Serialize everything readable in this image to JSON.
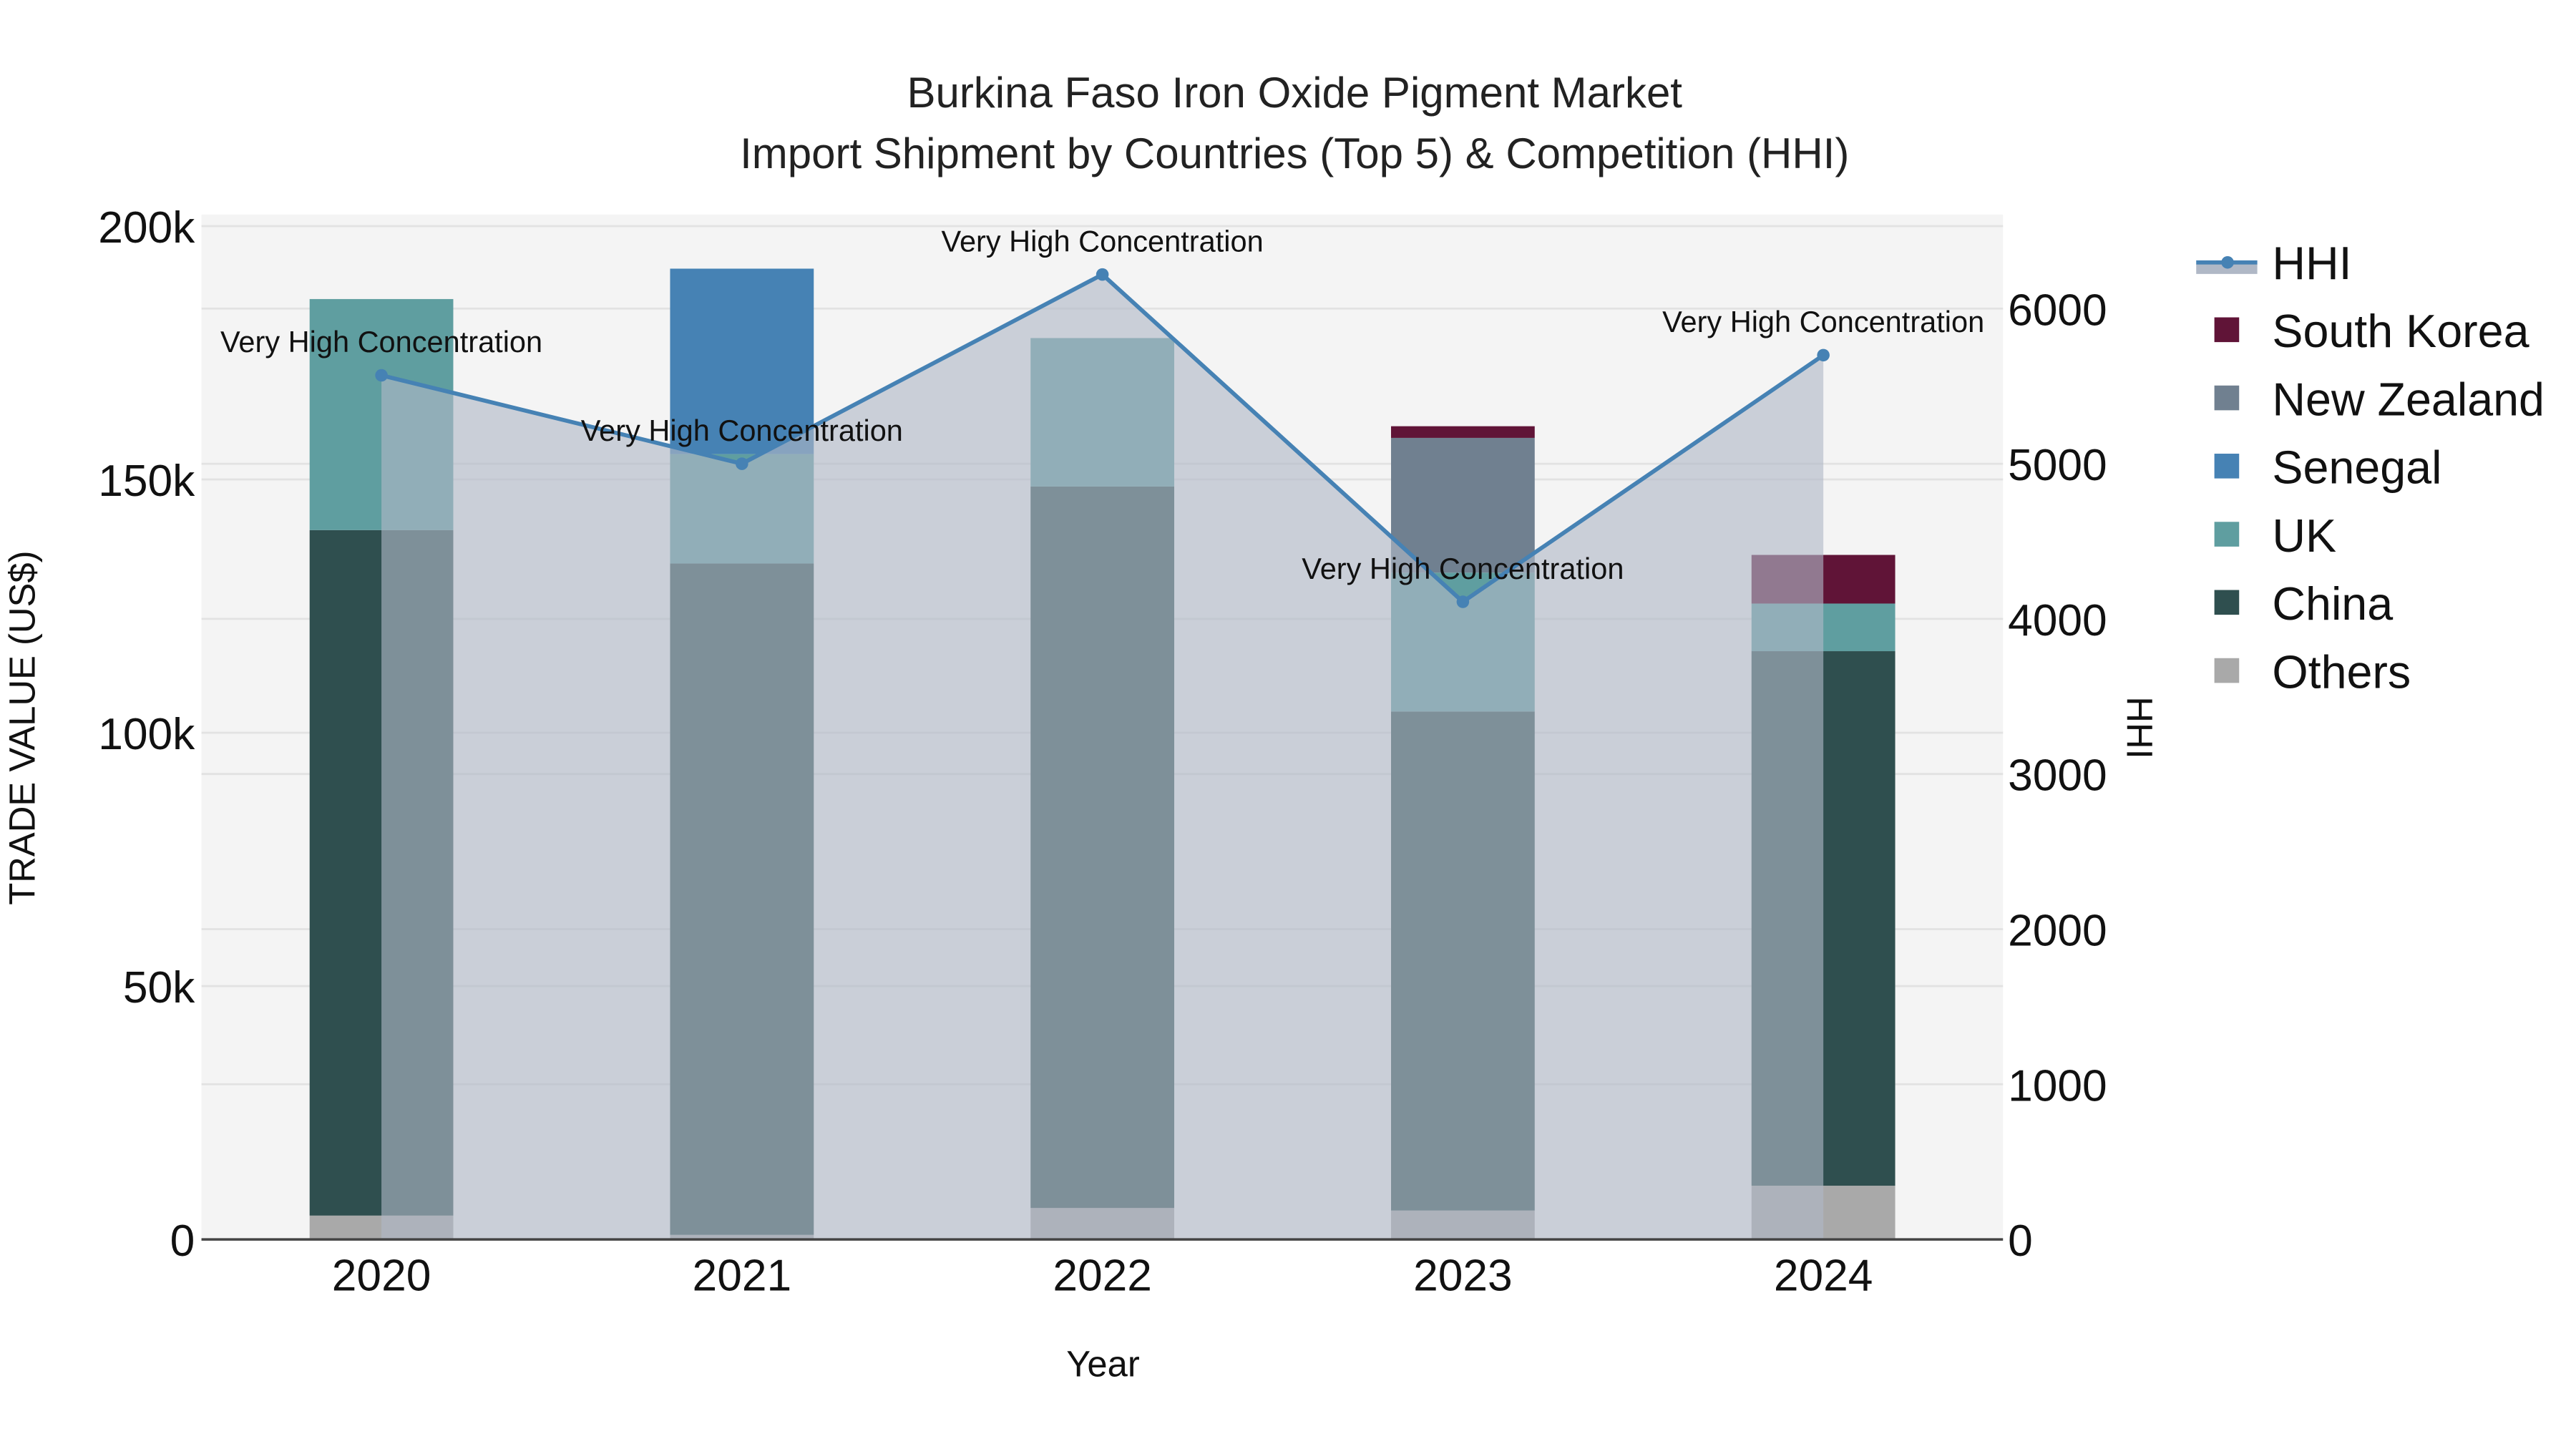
{
  "chart_data": {
    "type": "bar",
    "subtype": "stacked bar with line/area overlay on secondary axis",
    "title": "Burkina Faso Iron Oxide Pigment Market",
    "subtitle": "Import Shipment by Countries (Top 5) & Competition (HHI)",
    "xlabel": "Year",
    "ylabel": "TRADE VALUE (US$)",
    "y2label": "HHI",
    "categories": [
      "2020",
      "2021",
      "2022",
      "2023",
      "2024"
    ],
    "ylim": [
      0,
      200000
    ],
    "y2lim": [
      0,
      6600
    ],
    "yticks": [
      {
        "value": 0,
        "label": "0"
      },
      {
        "value": 50000,
        "label": "50k"
      },
      {
        "value": 100000,
        "label": "100k"
      },
      {
        "value": 150000,
        "label": "150k"
      },
      {
        "value": 200000,
        "label": "200k"
      }
    ],
    "y2ticks": [
      {
        "value": 0,
        "label": "0"
      },
      {
        "value": 1000,
        "label": "1000"
      },
      {
        "value": 2000,
        "label": "2000"
      },
      {
        "value": 3000,
        "label": "3000"
      },
      {
        "value": 4000,
        "label": "4000"
      },
      {
        "value": 5000,
        "label": "5000"
      },
      {
        "value": 6000,
        "label": "6000"
      }
    ],
    "grid": true,
    "legend_position": "right",
    "series": [
      {
        "name": "Others",
        "color": "#A9A9A9",
        "values": [
          4700,
          900,
          6200,
          5700,
          10600
        ]
      },
      {
        "name": "China",
        "color": "#2F4F4F",
        "values": [
          135300,
          132500,
          142400,
          98500,
          105500
        ]
      },
      {
        "name": "UK",
        "color": "#5F9EA0",
        "values": [
          45600,
          21600,
          29300,
          27400,
          9400
        ]
      },
      {
        "name": "Senegal",
        "color": "#4682B4",
        "values": [
          0,
          36600,
          0,
          0,
          0
        ]
      },
      {
        "name": "New Zealand",
        "color": "#708090",
        "values": [
          0,
          0,
          0,
          26600,
          0
        ]
      },
      {
        "name": "South Korea",
        "color": "#601437",
        "values": [
          0,
          0,
          0,
          2300,
          9600
        ]
      }
    ],
    "line_series": {
      "name": "HHI",
      "axis": "y2",
      "color": "#4682B4",
      "fill_color": "#B0B8C6",
      "values": [
        5570,
        5000,
        6220,
        4110,
        5700
      ],
      "annotations": [
        "Very High Concentration",
        "Very High Concentration",
        "Very High Concentration",
        "Very High Concentration",
        "Very High Concentration"
      ]
    },
    "legend": [
      "HHI",
      "South Korea",
      "New Zealand",
      "Senegal",
      "UK",
      "China",
      "Others"
    ]
  }
}
